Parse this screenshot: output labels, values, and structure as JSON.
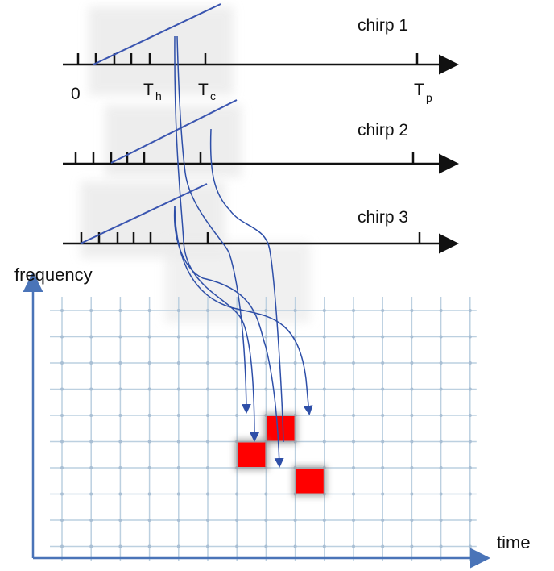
{
  "chirp_rows": [
    {
      "label": "chirp 1",
      "tick_labels": {
        "zero": "0",
        "th_main": "T",
        "th_sub": "h",
        "tc_main": "T",
        "tc_sub": "c",
        "tp_main": "T",
        "tp_sub": "p"
      }
    },
    {
      "label": "chirp 2"
    },
    {
      "label": "chirp 3"
    }
  ],
  "axes": {
    "y_label": "frequency",
    "x_label": "time"
  },
  "colors": {
    "chirp_line": "#3a55b0",
    "arrow": "#2e4fa8",
    "axis": "#111111",
    "plot_axis": "#4a74b8",
    "grid": "#bcd0e0",
    "grid_node": "#a9bfd4",
    "cell": "#ff0000"
  },
  "grid": {
    "cols": 14,
    "rows": 9
  },
  "highlighted_cells": [
    {
      "col": 7,
      "row": 4
    },
    {
      "col": 6,
      "row": 5
    },
    {
      "col": 8,
      "row": 6
    }
  ]
}
